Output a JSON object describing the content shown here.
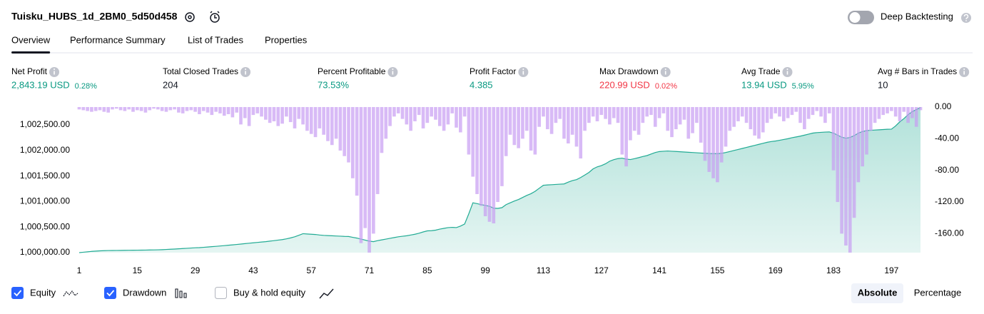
{
  "header": {
    "title": "Tuisku_HUBS_1d_2BM0_5d50d458",
    "toggle_label": "Deep Backtesting"
  },
  "tabs": [
    "Overview",
    "Performance Summary",
    "List of Trades",
    "Properties"
  ],
  "metrics": [
    {
      "label": "Net Profit",
      "value": "2,843.19 USD",
      "change": "0.28%",
      "color": "#089981"
    },
    {
      "label": "Total Closed Trades",
      "value": "204",
      "color": "#131722"
    },
    {
      "label": "Percent Profitable",
      "value": "73.53%",
      "color": "#089981"
    },
    {
      "label": "Profit Factor",
      "value": "4.385",
      "color": "#089981"
    },
    {
      "label": "Max Drawdown",
      "value": "220.99 USD",
      "change": "0.02%",
      "color": "#f23645"
    },
    {
      "label": "Avg Trade",
      "value": "13.94 USD",
      "change": "5.95%",
      "color": "#089981"
    },
    {
      "label": "Avg # Bars in Trades",
      "value": "10",
      "color": "#131722"
    }
  ],
  "chart_data": {
    "type": "combo",
    "x": [
      1,
      2,
      3,
      4,
      5,
      6,
      7,
      8,
      9,
      10,
      11,
      12,
      13,
      14,
      15,
      16,
      17,
      18,
      19,
      20,
      21,
      22,
      23,
      24,
      25,
      26,
      27,
      28,
      29,
      30,
      31,
      32,
      33,
      34,
      35,
      36,
      37,
      38,
      39,
      40,
      41,
      42,
      43,
      44,
      45,
      46,
      47,
      48,
      49,
      50,
      51,
      52,
      53,
      54,
      55,
      56,
      57,
      58,
      59,
      60,
      61,
      62,
      63,
      64,
      65,
      66,
      67,
      68,
      69,
      70,
      71,
      72,
      73,
      74,
      75,
      76,
      77,
      78,
      79,
      80,
      81,
      82,
      83,
      84,
      85,
      86,
      87,
      88,
      89,
      90,
      91,
      92,
      93,
      94,
      95,
      96,
      97,
      98,
      99,
      100,
      101,
      102,
      103,
      104,
      105,
      106,
      107,
      108,
      109,
      110,
      111,
      112,
      113,
      114,
      115,
      116,
      117,
      118,
      119,
      120,
      121,
      122,
      123,
      124,
      125,
      126,
      127,
      128,
      129,
      130,
      131,
      132,
      133,
      134,
      135,
      136,
      137,
      138,
      139,
      140,
      141,
      142,
      143,
      144,
      145,
      146,
      147,
      148,
      149,
      150,
      151,
      152,
      153,
      154,
      155,
      156,
      157,
      158,
      159,
      160,
      161,
      162,
      163,
      164,
      165,
      166,
      167,
      168,
      169,
      170,
      171,
      172,
      173,
      174,
      175,
      176,
      177,
      178,
      179,
      180,
      181,
      182,
      183,
      184,
      185,
      186,
      187,
      188,
      189,
      190,
      191,
      192,
      193,
      194,
      195,
      196,
      197,
      198,
      199,
      200,
      201,
      202,
      203,
      204
    ],
    "xlim": [
      1,
      204
    ],
    "xticks": [
      1,
      15,
      29,
      43,
      57,
      71,
      85,
      99,
      113,
      127,
      141,
      155,
      169,
      183,
      197
    ],
    "ylim": [
      1000000,
      1002850
    ],
    "yticks": [
      {
        "value": 1000000,
        "label": "1,000,000.00"
      },
      {
        "value": 1000500,
        "label": "1,000,500.00"
      },
      {
        "value": 1001000,
        "label": "1,001,000.00"
      },
      {
        "value": 1001500,
        "label": "1,001,500.00"
      },
      {
        "value": 1002000,
        "label": "1,002,000.00"
      },
      {
        "value": 1002500,
        "label": "1,002,500.00"
      }
    ],
    "y2lim": [
      -184,
      0
    ],
    "y2ticks": [
      {
        "value": 0,
        "label": "0.00"
      },
      {
        "value": -40,
        "label": "-40.00"
      },
      {
        "value": -80,
        "label": "-80.00"
      },
      {
        "value": -120,
        "label": "-120.00"
      },
      {
        "value": -160,
        "label": "-160.00"
      }
    ],
    "series": [
      {
        "name": "Equity",
        "color": "#22ab94",
        "checked": true,
        "values": [
          1000000,
          1000008,
          1000016,
          1000024,
          1000030,
          1000035,
          1000038,
          1000041,
          1000042,
          1000043,
          1000044,
          1000045,
          1000046,
          1000047,
          1000048,
          1000049,
          1000050,
          1000052,
          1000053,
          1000055,
          1000058,
          1000062,
          1000066,
          1000070,
          1000075,
          1000080,
          1000085,
          1000090,
          1000095,
          1000098,
          1000104,
          1000110,
          1000117,
          1000123,
          1000130,
          1000137,
          1000145,
          1000152,
          1000160,
          1000168,
          1000176,
          1000184,
          1000192,
          1000200,
          1000208,
          1000215,
          1000225,
          1000235,
          1000245,
          1000255,
          1000270,
          1000288,
          1000310,
          1000340,
          1000371,
          1000365,
          1000360,
          1000355,
          1000345,
          1000338,
          1000334,
          1000330,
          1000326,
          1000322,
          1000318,
          1000316,
          1000300,
          1000285,
          1000265,
          1000245,
          1000225,
          1000215,
          1000235,
          1000250,
          1000265,
          1000280,
          1000295,
          1000310,
          1000320,
          1000330,
          1000345,
          1000360,
          1000380,
          1000405,
          1000426,
          1000430,
          1000440,
          1000460,
          1000475,
          1000490,
          1000495,
          1000490,
          1000520,
          1000560,
          1000760,
          1000975,
          1000960,
          1000940,
          1000925,
          1000907,
          1000870,
          1000866,
          1000880,
          1000940,
          1000975,
          1001010,
          1001040,
          1001080,
          1001120,
          1001154,
          1001200,
          1001260,
          1001319,
          1001325,
          1001330,
          1001335,
          1001340,
          1001345,
          1001380,
          1001410,
          1001429,
          1001470,
          1001520,
          1001570,
          1001640,
          1001680,
          1001704,
          1001740,
          1001790,
          1001820,
          1001841,
          1001850,
          1001830,
          1001822,
          1001840,
          1001860,
          1001882,
          1001900,
          1001930,
          1001960,
          1001979,
          1001985,
          1001990,
          1001985,
          1001980,
          1001975,
          1001970,
          1001965,
          1001960,
          1001955,
          1001950,
          1001945,
          1001940,
          1001938,
          1001937,
          1001945,
          1001960,
          1001980,
          1002000,
          1002020,
          1002040,
          1002060,
          1002080,
          1002100,
          1002120,
          1002140,
          1002160,
          1002175,
          1002185,
          1002200,
          1002215,
          1002230,
          1002250,
          1002265,
          1002281,
          1002300,
          1002320,
          1002340,
          1002350,
          1002355,
          1002360,
          1002363,
          1002340,
          1002300,
          1002260,
          1002240,
          1002255,
          1002290,
          1002340,
          1002370,
          1002390,
          1002395,
          1002400,
          1002405,
          1002410,
          1002415,
          1002418,
          1002480,
          1002560,
          1002624,
          1002700,
          1002760,
          1002800,
          1002843.19
        ]
      },
      {
        "name": "Drawdown",
        "color": "#c79cf2",
        "axis": "y2",
        "checked": true,
        "values": [
          -3,
          -4,
          -5,
          -6,
          -5,
          -4,
          -6,
          -7,
          -3,
          -2,
          -4,
          -5,
          -3,
          -6,
          -4,
          -5,
          -7,
          -4,
          -2,
          -3,
          -5,
          -6,
          -4,
          -3,
          -7,
          -8,
          -5,
          -4,
          -6,
          -9,
          -5,
          -7,
          -10,
          -6,
          -8,
          -11,
          -9,
          -13,
          -7,
          -22,
          -14,
          -24,
          -10,
          -8,
          -12,
          -16,
          -20,
          -18,
          -24,
          -21,
          -12,
          -19,
          -27,
          -15,
          -22,
          -30,
          -34,
          -38,
          -27,
          -35,
          -43,
          -48,
          -40,
          -55,
          -62,
          -70,
          -90,
          -112,
          -172,
          -153,
          -184,
          -160,
          -110,
          -58,
          -40,
          -24,
          -12,
          -8,
          -15,
          -22,
          -30,
          -18,
          -10,
          -27,
          -20,
          -12,
          -16,
          -24,
          -30,
          -22,
          -8,
          -26,
          -32,
          -12,
          -60,
          -88,
          -110,
          -125,
          -138,
          -145,
          -147,
          -120,
          -100,
          -62,
          -35,
          -48,
          -52,
          -40,
          -30,
          -55,
          -60,
          -25,
          -12,
          -28,
          -34,
          -20,
          -15,
          -40,
          -46,
          -35,
          -50,
          -65,
          -30,
          -20,
          -12,
          -18,
          -10,
          -15,
          -22,
          -14,
          -20,
          -60,
          -75,
          -42,
          -30,
          -35,
          -20,
          -12,
          -10,
          -25,
          -14,
          -8,
          -30,
          -38,
          -28,
          -22,
          -16,
          -40,
          -33,
          -20,
          -45,
          -68,
          -82,
          -90,
          -95,
          -70,
          -50,
          -30,
          -25,
          -18,
          -12,
          -20,
          -28,
          -36,
          -40,
          -32,
          -20,
          -15,
          -8,
          -12,
          -18,
          -14,
          -10,
          -6,
          -20,
          -28,
          -15,
          -10,
          -5,
          -12,
          -20,
          -8,
          -80,
          -120,
          -160,
          -175,
          -184,
          -140,
          -95,
          -75,
          -60,
          -30,
          -20,
          -15,
          -10,
          -8,
          -5,
          -12,
          -18,
          -6,
          -20,
          -14,
          -25,
          -4
        ]
      }
    ]
  },
  "controls": {
    "buy_hold": {
      "label": "Buy & hold equity",
      "checked": false
    },
    "modes": [
      "Absolute",
      "Percentage"
    ]
  }
}
